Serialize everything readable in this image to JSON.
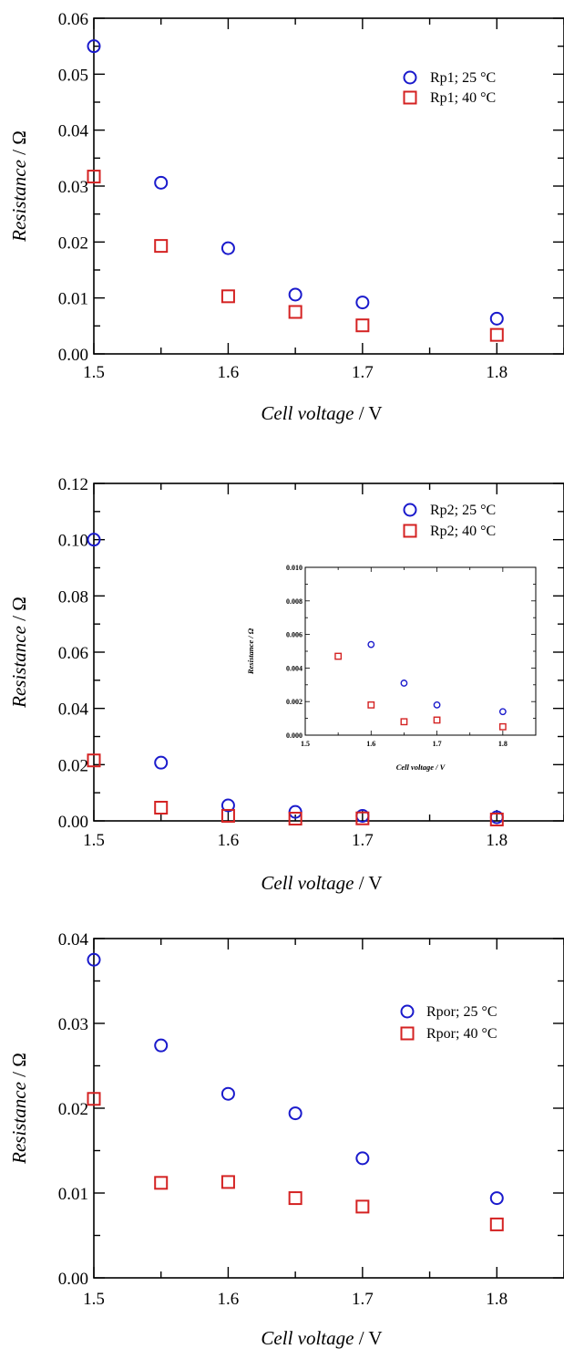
{
  "colors": {
    "series_25": "#1a1acc",
    "series_40": "#d42222",
    "axis": "#000000"
  },
  "chart_data": [
    {
      "type": "scatter",
      "xlabel_italic": "Cell voltage",
      "xlabel_unit": " / V",
      "ylabel_italic": "Resistance",
      "ylabel_unit": " / Ω",
      "xlim": [
        1.5,
        1.85
      ],
      "ylim": [
        0.0,
        0.06
      ],
      "xticks": [
        1.5,
        1.6,
        1.7,
        1.8
      ],
      "xtick_labels": [
        "1.5",
        "1.6",
        "1.7",
        "1.8"
      ],
      "yticks": [
        0.0,
        0.01,
        0.02,
        0.03,
        0.04,
        0.05,
        0.06
      ],
      "ytick_labels": [
        "0.00",
        "0.01",
        "0.02",
        "0.03",
        "0.04",
        "0.05",
        "0.06"
      ],
      "legend_position": "top-right",
      "series": [
        {
          "name": "Rp1; 25 °C",
          "marker": "circle",
          "x": [
            1.5,
            1.55,
            1.6,
            1.65,
            1.7,
            1.8
          ],
          "y": [
            0.055,
            0.0306,
            0.0189,
            0.0106,
            0.0092,
            0.0063
          ]
        },
        {
          "name": "Rp1; 40 °C",
          "marker": "square",
          "x": [
            1.5,
            1.55,
            1.6,
            1.65,
            1.7,
            1.8
          ],
          "y": [
            0.0317,
            0.0193,
            0.0103,
            0.0075,
            0.0051,
            0.0034
          ]
        }
      ]
    },
    {
      "type": "scatter",
      "xlabel_italic": "Cell voltage",
      "xlabel_unit": " / V",
      "ylabel_italic": "Resistance",
      "ylabel_unit": " / Ω",
      "xlim": [
        1.5,
        1.85
      ],
      "ylim": [
        0.0,
        0.12
      ],
      "xticks": [
        1.5,
        1.6,
        1.7,
        1.8
      ],
      "xtick_labels": [
        "1.5",
        "1.6",
        "1.7",
        "1.8"
      ],
      "yticks": [
        0.0,
        0.02,
        0.04,
        0.06,
        0.08,
        0.1,
        0.12
      ],
      "ytick_labels": [
        "0.00",
        "0.02",
        "0.04",
        "0.06",
        "0.08",
        "0.10",
        "0.12"
      ],
      "legend_position": "top-right",
      "series": [
        {
          "name": "Rp2; 25 °C",
          "marker": "circle",
          "x": [
            1.5,
            1.55,
            1.6,
            1.65,
            1.7,
            1.8
          ],
          "y": [
            0.1,
            0.0207,
            0.0055,
            0.0032,
            0.0018,
            0.0013
          ]
        },
        {
          "name": "Rp2; 40 °C",
          "marker": "square",
          "x": [
            1.5,
            1.55,
            1.6,
            1.65,
            1.7,
            1.8
          ],
          "y": [
            0.0215,
            0.0047,
            0.0018,
            0.0008,
            0.0009,
            0.0005
          ]
        }
      ],
      "inset": {
        "type": "scatter",
        "xlabel": "Cell voltage / V",
        "ylabel": "Resistance / Ω",
        "xlim": [
          1.5,
          1.85
        ],
        "ylim": [
          0.0,
          0.01
        ],
        "xticks": [
          1.5,
          1.6,
          1.7,
          1.8
        ],
        "xtick_labels": [
          "1.5",
          "1.6",
          "1.7",
          "1.8"
        ],
        "yticks": [
          0.0,
          0.002,
          0.004,
          0.006,
          0.008,
          0.01
        ],
        "ytick_labels": [
          "0.000",
          "0.002",
          "0.004",
          "0.006",
          "0.008",
          "0.010"
        ],
        "series": [
          {
            "marker": "circle",
            "x": [
              1.6,
              1.65,
              1.7,
              1.8
            ],
            "y": [
              0.0054,
              0.0031,
              0.0018,
              0.0014
            ]
          },
          {
            "marker": "square",
            "x": [
              1.55,
              1.6,
              1.65,
              1.7,
              1.8
            ],
            "y": [
              0.0047,
              0.0018,
              0.0008,
              0.0009,
              0.0005
            ]
          }
        ]
      }
    },
    {
      "type": "scatter",
      "xlabel_italic": "Cell voltage",
      "xlabel_unit": " / V",
      "ylabel_italic": "Resistance",
      "ylabel_unit": " / Ω",
      "xlim": [
        1.5,
        1.85
      ],
      "ylim": [
        0.0,
        0.04
      ],
      "xticks": [
        1.5,
        1.6,
        1.7,
        1.8
      ],
      "xtick_labels": [
        "1.5",
        "1.6",
        "1.7",
        "1.8"
      ],
      "yticks": [
        0.0,
        0.01,
        0.02,
        0.03,
        0.04
      ],
      "ytick_labels": [
        "0.00",
        "0.01",
        "0.02",
        "0.03",
        "0.04"
      ],
      "legend_position": "top-right",
      "series": [
        {
          "name": "Rpor; 25 °C",
          "marker": "circle",
          "x": [
            1.5,
            1.55,
            1.6,
            1.65,
            1.7,
            1.8
          ],
          "y": [
            0.0375,
            0.0274,
            0.0217,
            0.0194,
            0.0141,
            0.0094
          ]
        },
        {
          "name": "Rpor; 40 °C",
          "marker": "square",
          "x": [
            1.5,
            1.55,
            1.6,
            1.65,
            1.7,
            1.8
          ],
          "y": [
            0.0211,
            0.0112,
            0.0113,
            0.0094,
            0.0084,
            0.0063
          ]
        }
      ]
    }
  ]
}
